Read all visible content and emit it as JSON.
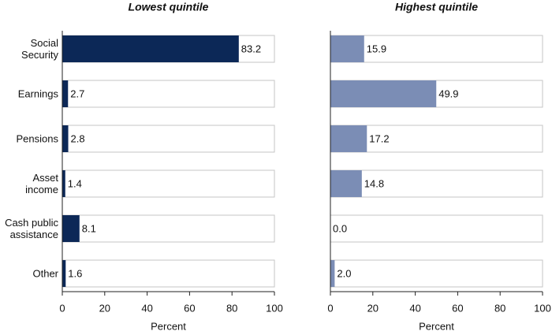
{
  "chart_data": [
    {
      "type": "barh",
      "title": "Lowest quintile",
      "title_color": "#0c2857",
      "xlabel": "Percent",
      "categories": [
        "Social Security",
        "Earnings",
        "Pensions",
        "Asset income",
        "Cash public assistance",
        "Other"
      ],
      "values": [
        83.2,
        2.7,
        2.8,
        1.4,
        8.1,
        1.6
      ],
      "color": "#0c2857",
      "xlim": [
        0,
        100
      ],
      "xticks": [
        0,
        20,
        40,
        60,
        80,
        100
      ]
    },
    {
      "type": "barh",
      "title": "Highest quintile",
      "title_color": "#7b8db5",
      "xlabel": "Percent",
      "values": [
        15.9,
        49.9,
        17.2,
        14.8,
        0.0,
        2.0
      ],
      "value_labels": [
        "15.9",
        "49.9",
        "17.2",
        "14.8",
        "0.0",
        "2.0"
      ],
      "color": "#7b8db5",
      "xlim": [
        0,
        100
      ],
      "xticks": [
        0,
        20,
        40,
        60,
        80,
        100
      ]
    }
  ]
}
